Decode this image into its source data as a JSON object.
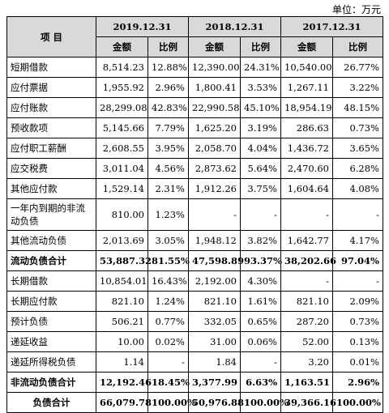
{
  "unit_label": "单位：万元",
  "header": {
    "item_label": "项    目",
    "years": [
      "2019.12.31",
      "2018.12.31",
      "2017.12.31"
    ],
    "amount_label": "金额",
    "ratio_label": "比例"
  },
  "rows": [
    {
      "name": "短期借款",
      "cells": [
        "8,514.23",
        "12.88%",
        "12,390.00",
        "24.31%",
        "10,540.00",
        "26.77%"
      ]
    },
    {
      "name": "应付票据",
      "cells": [
        "1,955.92",
        "2.96%",
        "1,800.41",
        "3.53%",
        "1,267.11",
        "3.22%"
      ]
    },
    {
      "name": "应付账款",
      "cells": [
        "28,299.08",
        "42.83%",
        "22,990.58",
        "45.10%",
        "18,954.19",
        "48.15%"
      ]
    },
    {
      "name": "预收款项",
      "cells": [
        "5,145.66",
        "7.79%",
        "1,625.20",
        "3.19%",
        "286.63",
        "0.73%"
      ]
    },
    {
      "name": "应付职工薪酬",
      "cells": [
        "2,608.55",
        "3.95%",
        "2,058.70",
        "4.04%",
        "1,436.72",
        "3.65%"
      ]
    },
    {
      "name": "应交税费",
      "cells": [
        "3,011.04",
        "4.56%",
        "2,873.62",
        "5.64%",
        "2,470.60",
        "6.28%"
      ]
    },
    {
      "name": "其他应付款",
      "cells": [
        "1,529.14",
        "2.31%",
        "1,912.26",
        "3.75%",
        "1,604.64",
        "4.08%"
      ]
    },
    {
      "name": "一年内到期的非流动负债",
      "cells": [
        "810.00",
        "1.23%",
        "-",
        "-",
        "-",
        "-"
      ]
    },
    {
      "name": "其他流动负债",
      "cells": [
        "2,013.69",
        "3.05%",
        "1,948.12",
        "3.82%",
        "1,642.77",
        "4.17%"
      ]
    },
    {
      "name": "流动负债合计",
      "cells": [
        "53,887.32",
        "81.55%",
        "47,598.89",
        "93.37%",
        "38,202.66",
        "97.04%"
      ]
    },
    {
      "name": "长期借款",
      "cells": [
        "10,854.01",
        "16.43%",
        "2,192.00",
        "4.30%",
        "-",
        "-"
      ]
    },
    {
      "name": "长期应付款",
      "cells": [
        "821.10",
        "1.24%",
        "821.10",
        "1.61%",
        "821.10",
        "2.09%"
      ]
    },
    {
      "name": "预计负债",
      "cells": [
        "506.21",
        "0.77%",
        "332.05",
        "0.65%",
        "287.20",
        "0.73%"
      ]
    },
    {
      "name": "递延收益",
      "cells": [
        "10.00",
        "0.02%",
        "31.00",
        "0.06%",
        "52.00",
        "0.13%"
      ]
    },
    {
      "name": "递延所得税负债",
      "cells": [
        "1.14",
        "-",
        "1.84",
        "-",
        "3.20",
        "0.01%"
      ]
    },
    {
      "name": "非流动负债合计",
      "cells": [
        "12,192.46",
        "18.45%",
        "3,377.99",
        "6.63%",
        "1,163.51",
        "2.96%"
      ]
    },
    {
      "name": "负债合计",
      "cells": [
        "66,079.78",
        "100.00%",
        "50,976.88",
        "100.00%",
        "39,366.16",
        "100.00%"
      ]
    }
  ]
}
